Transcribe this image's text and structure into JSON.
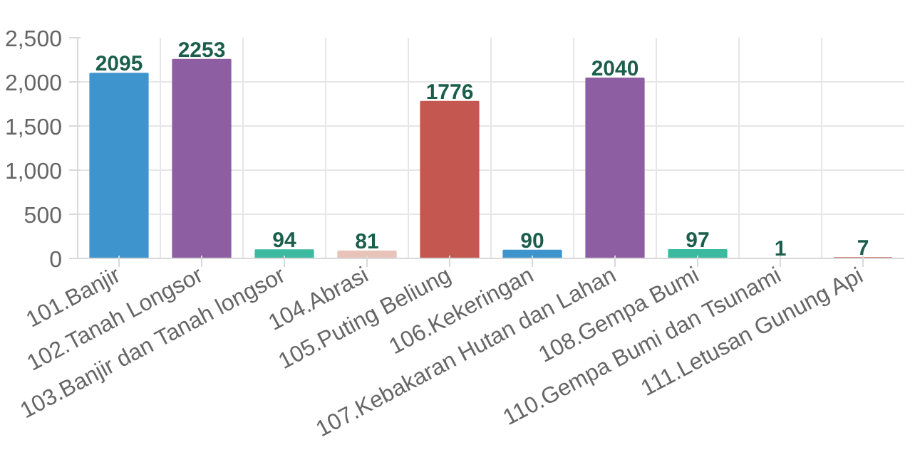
{
  "chart_data": {
    "type": "bar",
    "categories": [
      "101.Banjir",
      "102.Tanah Longsor",
      "103.Banjir dan Tanah longsor",
      "104.Abrasi",
      "105.Puting Beliung",
      "106.Kekeringan",
      "107.Kebakaran Hutan dan Lahan",
      "108.Gempa Bumi",
      "110.Gempa Bumi dan Tsunami",
      "111.Letusan Gunung Api"
    ],
    "values": [
      2095,
      2253,
      94,
      81,
      1776,
      90,
      2040,
      97,
      1,
      7
    ],
    "colors": [
      "#3e95cd",
      "#8e5ea2",
      "#3cba9f",
      "#e8c3b9",
      "#c45850",
      "#3e95cd",
      "#8e5ea2",
      "#3cba9f",
      "#e8c3b9",
      "#c45850"
    ],
    "ylim": [
      0,
      2500
    ],
    "yticks": [
      0,
      {
        "value": 500,
        "label": "500"
      },
      {
        "value": 1000,
        "label": "1,000"
      },
      {
        "value": 1500,
        "label": "1,500"
      },
      {
        "value": 2000,
        "label": "2,000"
      },
      {
        "value": 2500,
        "label": "2,500"
      }
    ],
    "grid": true,
    "data_labels": true
  }
}
